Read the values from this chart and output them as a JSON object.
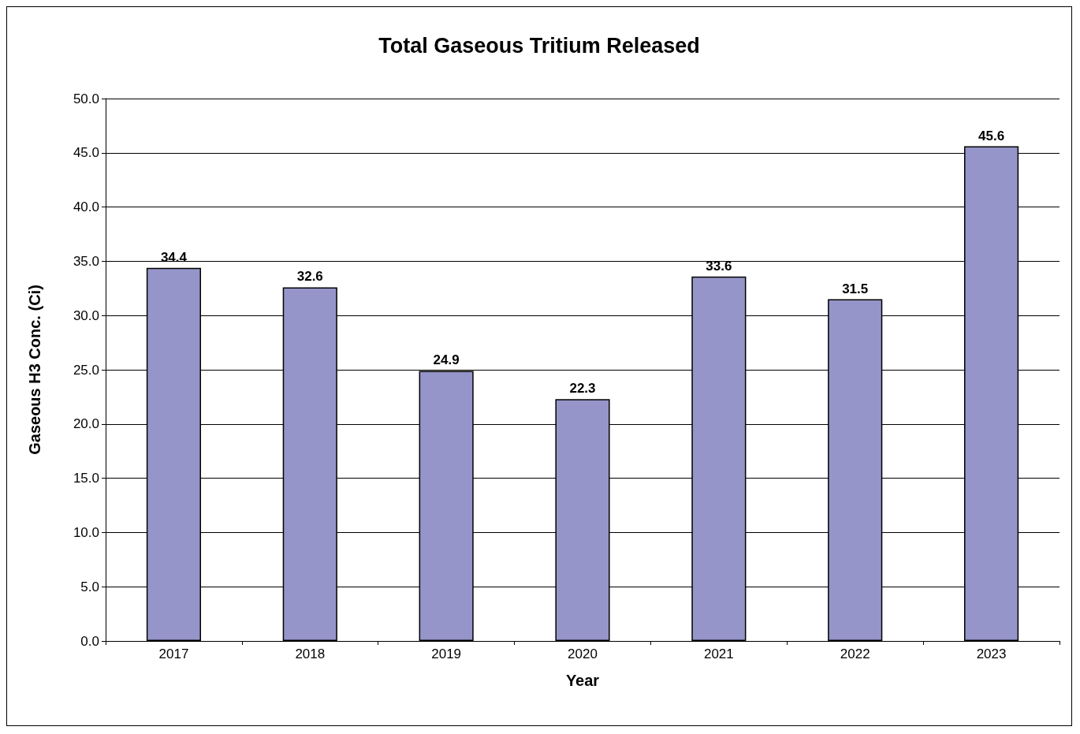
{
  "chart_data": {
    "type": "bar",
    "title": "Total Gaseous Tritium Released",
    "xlabel": "Year",
    "ylabel": "Gaseous H3 Conc. (Ci)",
    "categories": [
      "2017",
      "2018",
      "2019",
      "2020",
      "2021",
      "2022",
      "2023"
    ],
    "values": [
      34.4,
      32.6,
      24.9,
      22.3,
      33.6,
      31.5,
      45.6
    ],
    "color": "#9595c9",
    "ylim": [
      0,
      50
    ],
    "yticks": [
      {
        "value": 0,
        "label": "0.0"
      },
      {
        "value": 5,
        "label": "5.0"
      },
      {
        "value": 10,
        "label": "10.0"
      },
      {
        "value": 15,
        "label": "15.0"
      },
      {
        "value": 20,
        "label": "20.0"
      },
      {
        "value": 25,
        "label": "25.0"
      },
      {
        "value": 30,
        "label": "30.0"
      },
      {
        "value": 35,
        "label": "35.0"
      },
      {
        "value": 40,
        "label": "40.0"
      },
      {
        "value": 45,
        "label": "45.0"
      },
      {
        "value": 50,
        "label": "50.0"
      }
    ],
    "grid": "y",
    "data_labels": true
  }
}
